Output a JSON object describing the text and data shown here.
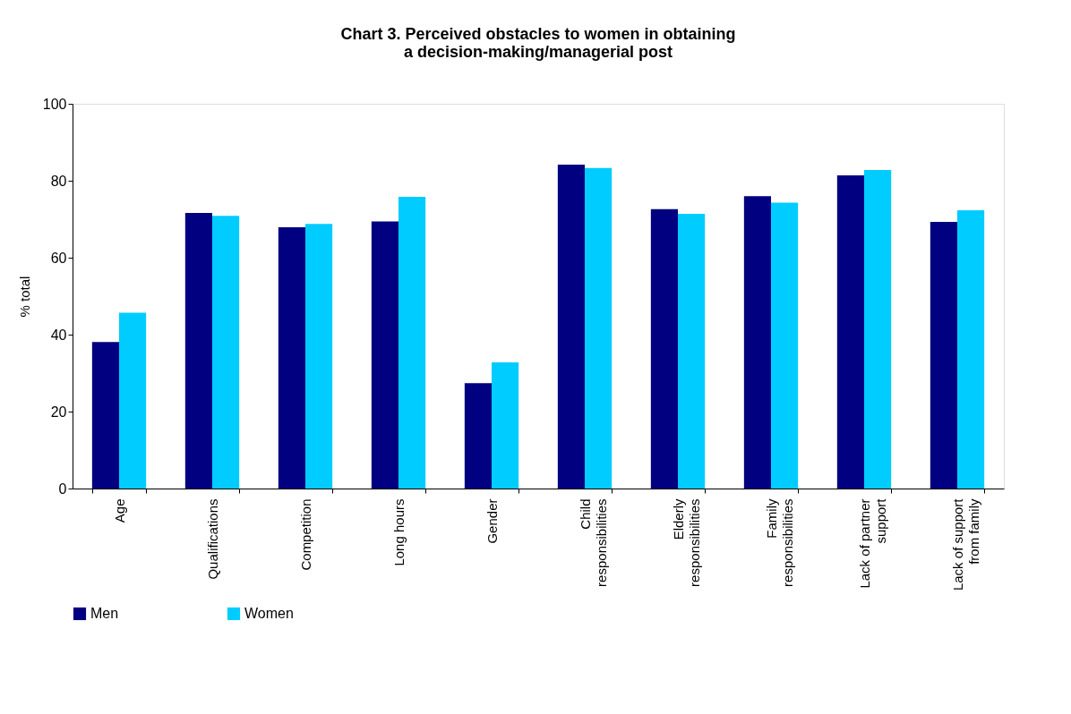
{
  "chart_data": {
    "type": "bar",
    "title": [
      "Chart 3. Perceived obstacles to women in obtaining",
      "a decision-making/managerial post"
    ],
    "ylabel": "% total",
    "categories": [
      "Age",
      "Qualifications",
      "Competition",
      "Long hours",
      "Gender",
      "Child responsibilities",
      "Elderly responsibilities",
      "Family responsibilities",
      "Lack of partner support",
      "Lack of support from family"
    ],
    "series": [
      {
        "name": "Men",
        "color": "#000080",
        "values": [
          38.1,
          71.6,
          67.9,
          69.4,
          27.4,
          84.2,
          72.6,
          76.0,
          81.4,
          69.3
        ]
      },
      {
        "name": "Women",
        "color": "#00ccff",
        "values": [
          45.7,
          70.9,
          68.8,
          75.8,
          32.8,
          83.3,
          71.4,
          74.3,
          82.8,
          72.3
        ]
      }
    ],
    "ylim": [
      0,
      100
    ],
    "yticks": [
      0,
      20,
      40,
      60,
      80,
      100
    ],
    "grid": false,
    "legend": "bottom"
  }
}
